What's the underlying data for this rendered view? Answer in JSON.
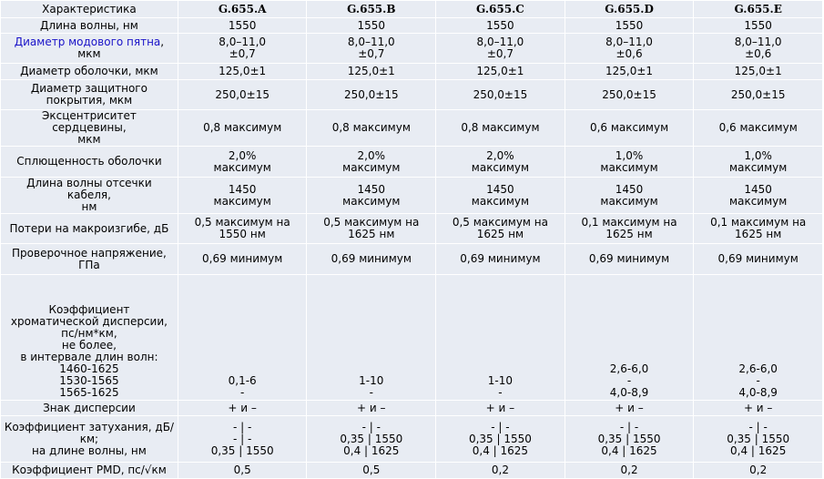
{
  "header": {
    "characteristic": "Характеристика",
    "cols": [
      "G.655.A",
      "G.655.B",
      "G.655.C",
      "G.655.D",
      "G.655.E"
    ]
  },
  "rows": {
    "wavelength": {
      "label": "Длина волны, нм",
      "values": [
        "1550",
        "1550",
        "1550",
        "1550",
        "1550"
      ]
    },
    "mode_field": {
      "label_link": "Диаметр модового пятна",
      "label_rest": ", мкм",
      "values": [
        [
          "8,0–11,0",
          "±0,7"
        ],
        [
          "8,0–11,0",
          "±0,7"
        ],
        [
          "8,0–11,0",
          "±0,7"
        ],
        [
          "8,0–11,0",
          "±0,6"
        ],
        [
          "8,0–11,0",
          "±0,6"
        ]
      ]
    },
    "cladding": {
      "label": "Диаметр оболочки, мкм",
      "values": [
        "125,0±1",
        "125,0±1",
        "125,0±1",
        "125,0±1",
        "125,0±1"
      ]
    },
    "coating": {
      "label_lines": [
        "Диаметр защитного",
        "покрытия, мкм"
      ],
      "values": [
        "250,0±15",
        "250,0±15",
        "250,0±15",
        "250,0±15",
        "250,0±15"
      ]
    },
    "eccentricity": {
      "label_lines": [
        "Эксцентриситет сердцевины,",
        "мкм"
      ],
      "values": [
        "0,8 максимум",
        "0,8 максимум",
        "0,8 максимум",
        "0,6 максимум",
        "0,6 максимум"
      ]
    },
    "noncircularity": {
      "label": "Сплющенность оболочки",
      "values": [
        [
          "2,0%",
          "максимум"
        ],
        [
          "2,0%",
          "максимум"
        ],
        [
          "2,0%",
          "максимум"
        ],
        [
          "1,0%",
          "максимум"
        ],
        [
          "1,0%",
          "максимум"
        ]
      ]
    },
    "cutoff": {
      "label_lines": [
        "Длина волны отсечки кабеля,",
        "нм"
      ],
      "values": [
        [
          "1450",
          "максимум"
        ],
        [
          "1450",
          "максимум"
        ],
        [
          "1450",
          "максимум"
        ],
        [
          "1450",
          "максимум"
        ],
        [
          "1450",
          "максимум"
        ]
      ]
    },
    "macrobend": {
      "label": "Потери на макроизгибе, дБ",
      "values": [
        [
          "0,5 максимум на",
          "1550 нм"
        ],
        [
          "0,5 максимум на",
          "1625 нм"
        ],
        [
          "0,5 максимум на",
          "1625 нм"
        ],
        [
          "0,1 максимум на",
          "1625 нм"
        ],
        [
          "0,1 максимум на",
          "1625 нм"
        ]
      ]
    },
    "proof": {
      "label_lines": [
        "Проверочное напряжение,",
        "ГПа"
      ],
      "values": [
        "0,69 минимум",
        "0,69 минимум",
        "0,69 минимум",
        "0,69 минимум",
        "0,69 минимум"
      ]
    },
    "dispersion": {
      "label_lines": [
        "Коэффициент",
        "хроматической дисперсии,",
        "пс/нм*км,",
        "не более,",
        "в интервале длин волн:",
        "1460-1625",
        "1530-1565",
        "1565-1625"
      ],
      "values": [
        [
          "0,1-6",
          "-"
        ],
        [
          "1-10",
          "-"
        ],
        [
          "1-10",
          "-"
        ],
        [
          "2,6-6,0",
          "-",
          "4,0-8,9"
        ],
        [
          "2,6-6,0",
          "-",
          "4,0-8,9"
        ]
      ]
    },
    "sign": {
      "label": "Знак дисперсии",
      "values": [
        "+ и –",
        "+ и –",
        "+ и –",
        "+ и –",
        "+ и –"
      ]
    },
    "attenuation": {
      "label_lines": [
        "Коэффициент затухания, дБ/",
        "км;",
        "на длине волны, нм"
      ],
      "values": [
        [
          "- | -",
          "- | -",
          "0,35 | 1550"
        ],
        [
          "- | -",
          "0,35 | 1550",
          "0,4 | 1625"
        ],
        [
          "- | -",
          "0,35 | 1550",
          "0,4 | 1625"
        ],
        [
          "- | -",
          "0,35 | 1550",
          "0,4 | 1625"
        ],
        [
          "- | -",
          "0,35 | 1550",
          "0,4 | 1625"
        ]
      ]
    },
    "pmd": {
      "label": "Коэффициент PMD, пс/√км",
      "values": [
        "0,5",
        "0,5",
        "0,2",
        "0,2",
        "0,2"
      ]
    }
  }
}
